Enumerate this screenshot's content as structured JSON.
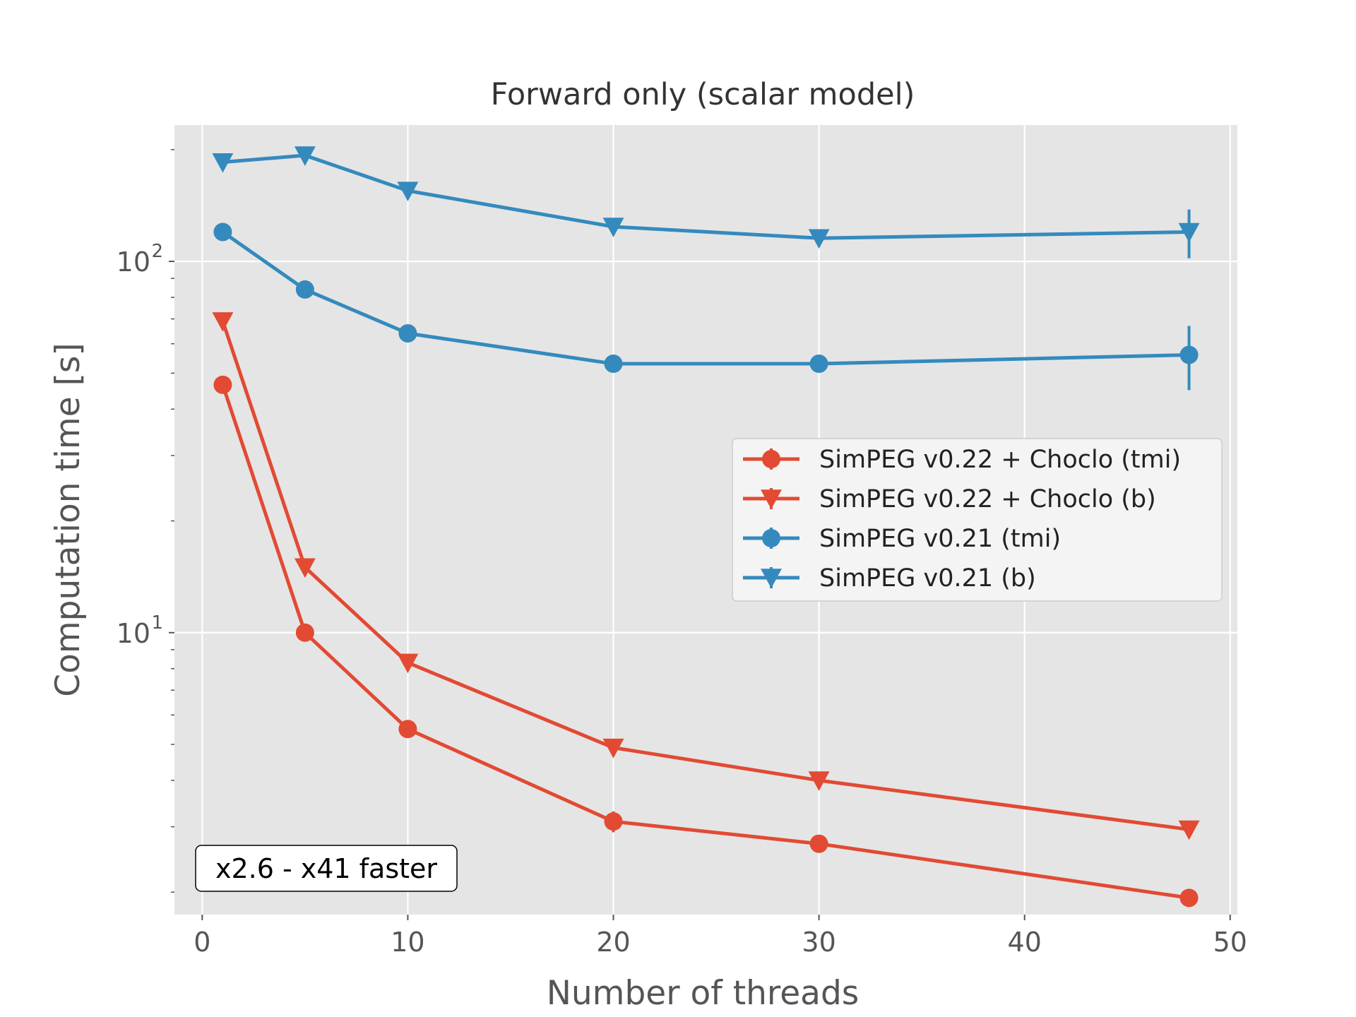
{
  "chart_data": {
    "type": "line",
    "title": "Forward only (scalar model)",
    "xlabel": "Number of threads",
    "ylabel": "Computation time [s]",
    "yscale": "log",
    "xlim": [
      -1.35,
      50.35
    ],
    "ylim": [
      1.74,
      233
    ],
    "x_ticks": [
      0,
      10,
      20,
      30,
      40,
      50
    ],
    "x_tick_labels": [
      "0",
      "10",
      "20",
      "30",
      "40",
      "50"
    ],
    "y_major_ticks": [
      10,
      100
    ],
    "y_tick_labels": [
      {
        "base": "10",
        "exp": "1"
      },
      {
        "base": "10",
        "exp": "2"
      }
    ],
    "y_minor_ticks": [
      2,
      3,
      4,
      5,
      6,
      7,
      8,
      9,
      20,
      30,
      40,
      50,
      60,
      70,
      80,
      90,
      200
    ],
    "grid": true,
    "legend_position": "center-right",
    "x": [
      1,
      5,
      10,
      20,
      30,
      48
    ],
    "series": [
      {
        "name": "SimPEG v0.22 + Choclo (tmi)",
        "color": "#E24A33",
        "marker": "circle",
        "values": [
          46.5,
          10.0,
          5.5,
          3.1,
          2.7,
          1.93
        ],
        "errors": [
          0,
          0,
          0,
          0.2,
          0,
          0
        ]
      },
      {
        "name": "SimPEG v0.22 + Choclo (b)",
        "color": "#E24A33",
        "marker": "triangle-down",
        "values": [
          69.0,
          15.0,
          8.3,
          4.9,
          4.0,
          2.95
        ],
        "errors": [
          0,
          0,
          0,
          0,
          0,
          0
        ]
      },
      {
        "name": "SimPEG v0.21 (tmi)",
        "color": "#348ABD",
        "marker": "circle",
        "values": [
          120.0,
          84.0,
          64.0,
          53.0,
          53.0,
          56.0
        ],
        "errors": [
          0,
          0,
          0,
          0,
          0,
          11
        ]
      },
      {
        "name": "SimPEG v0.21 (b)",
        "color": "#348ABD",
        "marker": "triangle-down",
        "values": [
          185.0,
          193.0,
          155.0,
          124.0,
          115.5,
          120.0
        ],
        "errors": [
          0,
          0,
          0,
          0,
          0,
          18
        ]
      }
    ],
    "annotation": "x2.6 - x41 faster",
    "colors": {
      "background": "#E5E5E5",
      "grid": "#FFFFFF",
      "axis_text": "#555555",
      "legend_face": "#F4F4F4",
      "legend_edge": "#CCCCCC"
    }
  }
}
